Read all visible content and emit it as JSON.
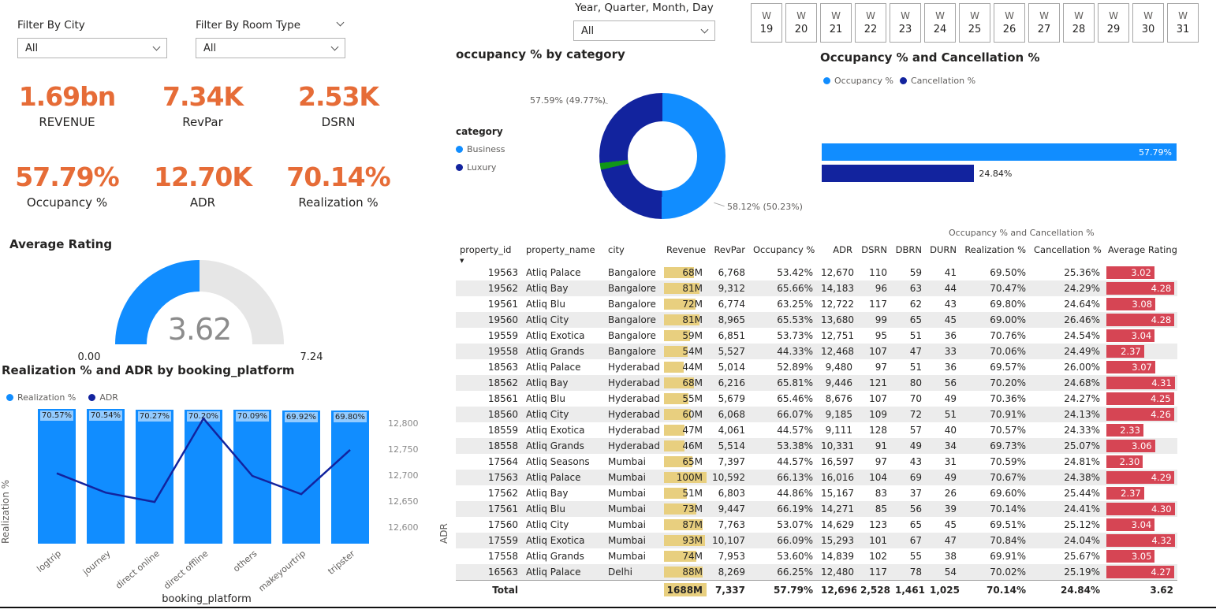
{
  "colors": {
    "accent_blue": "#118DFF",
    "dark_blue": "#12239E",
    "kpi_orange": "#E66C37",
    "revenue_bar": "#E8CF7F",
    "rating_bar": "#D64554",
    "gauge_track": "#E6E6E6",
    "row_alt": "#ECECEC"
  },
  "slicers": {
    "city": {
      "label": "Filter By City",
      "value": "All"
    },
    "room_type": {
      "label": "Filter By Room Type",
      "value": "All"
    },
    "date": {
      "label": "Year, Quarter, Month, Day",
      "value": "All"
    }
  },
  "week_selector": {
    "prefix": "W",
    "numbers": [
      "19",
      "20",
      "21",
      "22",
      "23",
      "24",
      "25",
      "26",
      "27",
      "28",
      "29",
      "30",
      "31"
    ]
  },
  "kpis": [
    {
      "value": "1.69bn",
      "label": "REVENUE"
    },
    {
      "value": "7.34K",
      "label": "RevPar"
    },
    {
      "value": "2.53K",
      "label": "DSRN"
    },
    {
      "value": "57.79%",
      "label": "Occupancy %"
    },
    {
      "value": "12.70K",
      "label": "ADR"
    },
    {
      "value": "70.14%",
      "label": "Realization %"
    }
  ],
  "table_overtitle": "Occupancy % and Cancellation %",
  "chart_data": [
    {
      "id": "occupancy-by-category-donut",
      "type": "pie",
      "title": "occupancy % by category",
      "legend_title": "category",
      "slices": [
        {
          "label": "Business",
          "value_pct": 58.12,
          "share_pct": 50.23,
          "callout": "58.12% (50.23%)",
          "color": "#118DFF"
        },
        {
          "label": "Luxury",
          "value_pct": 57.59,
          "share_pct": 49.77,
          "callout": "57.59% (49.77%)",
          "color": "#12239E"
        }
      ],
      "marker": {
        "color": "#109618",
        "start_pct": 71.5,
        "end_pct": 73.2
      }
    },
    {
      "id": "occupancy-cancellation-bars",
      "type": "bar",
      "orientation": "horizontal",
      "title": "Occupancy % and Cancellation %",
      "series": [
        {
          "name": "Occupancy %",
          "value": 57.79,
          "label": "57.79%",
          "color": "#118DFF"
        },
        {
          "name": "Cancellation %",
          "value": 24.84,
          "label": "24.84%",
          "color": "#12239E"
        }
      ],
      "xlim": [
        0,
        57.79
      ]
    },
    {
      "id": "average-rating-gauge",
      "type": "gauge",
      "title": "Average Rating",
      "value": 3.62,
      "min": 0,
      "max": 7.24,
      "value_label": "3.62",
      "min_label": "0.00",
      "max_label": "7.24"
    },
    {
      "id": "realization-adr-combo",
      "type": "bar",
      "title": "Realization % and ADR by booking_platform",
      "categories": [
        "logtrip",
        "journey",
        "direct online",
        "direct offline",
        "others",
        "makeyourtrip",
        "tripster"
      ],
      "series": [
        {
          "name": "Realization %",
          "kind": "column",
          "axis": "left",
          "color": "#118DFF",
          "values": [
            70.57,
            70.54,
            70.27,
            70.2,
            70.09,
            69.92,
            69.8
          ],
          "labels": [
            "70.57%",
            "70.54%",
            "70.27%",
            "70.20%",
            "70.09%",
            "69.92%",
            "69.80%"
          ]
        },
        {
          "name": "ADR",
          "kind": "line",
          "axis": "right",
          "color": "#12239E",
          "values": [
            12705,
            12668,
            12650,
            12810,
            12700,
            12665,
            12750
          ]
        }
      ],
      "left_axis_label": "Realization %",
      "right_axis_label": "ADR",
      "right_axis_ticks": [
        {
          "value": 12800,
          "label": "12,800"
        },
        {
          "value": 12750,
          "label": "12,750"
        },
        {
          "value": 12700,
          "label": "12,700"
        },
        {
          "value": 12650,
          "label": "12,650"
        },
        {
          "value": 12600,
          "label": "12,600"
        }
      ],
      "right_axis_range": [
        12600,
        12800
      ],
      "xlabel": "booking_platform"
    }
  ],
  "table": {
    "columns": [
      "property_id",
      "property_name",
      "city",
      "Revenue",
      "RevPar",
      "Occupancy %",
      "ADR",
      "DSRN",
      "DBRN",
      "DURN",
      "Realization %",
      "Cancellation %",
      "Average Rating"
    ],
    "rows": [
      [
        "19563",
        "Atliq Palace",
        "Bangalore",
        "68M",
        "6,768",
        "53.42%",
        "12,670",
        "110",
        "59",
        "41",
        "69.50%",
        "25.36%",
        "3.02"
      ],
      [
        "19562",
        "Atliq Bay",
        "Bangalore",
        "81M",
        "9,312",
        "65.66%",
        "14,183",
        "96",
        "63",
        "44",
        "70.47%",
        "24.29%",
        "4.28"
      ],
      [
        "19561",
        "Atliq Blu",
        "Bangalore",
        "72M",
        "6,774",
        "63.25%",
        "12,722",
        "117",
        "62",
        "43",
        "69.80%",
        "24.64%",
        "3.08"
      ],
      [
        "19560",
        "Atliq City",
        "Bangalore",
        "81M",
        "8,965",
        "65.53%",
        "13,680",
        "99",
        "65",
        "45",
        "69.00%",
        "26.46%",
        "4.28"
      ],
      [
        "19559",
        "Atliq Exotica",
        "Bangalore",
        "59M",
        "6,851",
        "53.73%",
        "12,751",
        "95",
        "51",
        "36",
        "70.76%",
        "24.54%",
        "3.04"
      ],
      [
        "19558",
        "Atliq Grands",
        "Bangalore",
        "54M",
        "5,527",
        "44.33%",
        "12,468",
        "107",
        "47",
        "33",
        "70.06%",
        "24.49%",
        "2.37"
      ],
      [
        "18563",
        "Atliq Palace",
        "Hyderabad",
        "44M",
        "5,014",
        "52.89%",
        "9,480",
        "97",
        "51",
        "36",
        "69.57%",
        "26.00%",
        "3.07"
      ],
      [
        "18562",
        "Atliq Bay",
        "Hyderabad",
        "68M",
        "6,216",
        "65.81%",
        "9,446",
        "121",
        "80",
        "56",
        "70.20%",
        "24.68%",
        "4.31"
      ],
      [
        "18561",
        "Atliq Blu",
        "Hyderabad",
        "55M",
        "5,679",
        "65.46%",
        "8,676",
        "107",
        "70",
        "49",
        "70.36%",
        "24.27%",
        "4.25"
      ],
      [
        "18560",
        "Atliq City",
        "Hyderabad",
        "60M",
        "6,068",
        "66.07%",
        "9,185",
        "109",
        "72",
        "51",
        "70.91%",
        "24.13%",
        "4.26"
      ],
      [
        "18559",
        "Atliq Exotica",
        "Hyderabad",
        "47M",
        "4,061",
        "44.57%",
        "9,111",
        "128",
        "57",
        "40",
        "70.57%",
        "24.33%",
        "2.33"
      ],
      [
        "18558",
        "Atliq Grands",
        "Hyderabad",
        "46M",
        "5,514",
        "53.38%",
        "10,331",
        "91",
        "49",
        "34",
        "69.73%",
        "25.07%",
        "3.06"
      ],
      [
        "17564",
        "Atliq Seasons",
        "Mumbai",
        "65M",
        "7,397",
        "44.57%",
        "16,597",
        "97",
        "43",
        "31",
        "70.59%",
        "24.81%",
        "2.30"
      ],
      [
        "17563",
        "Atliq Palace",
        "Mumbai",
        "100M",
        "10,592",
        "66.13%",
        "16,016",
        "104",
        "69",
        "49",
        "70.67%",
        "24.38%",
        "4.29"
      ],
      [
        "17562",
        "Atliq Bay",
        "Mumbai",
        "51M",
        "6,803",
        "44.86%",
        "15,167",
        "83",
        "37",
        "26",
        "69.60%",
        "25.44%",
        "2.37"
      ],
      [
        "17561",
        "Atliq Blu",
        "Mumbai",
        "73M",
        "9,447",
        "66.19%",
        "14,271",
        "85",
        "56",
        "39",
        "70.14%",
        "24.41%",
        "4.30"
      ],
      [
        "17560",
        "Atliq City",
        "Mumbai",
        "87M",
        "7,763",
        "53.07%",
        "14,629",
        "123",
        "65",
        "45",
        "69.51%",
        "25.12%",
        "3.04"
      ],
      [
        "17559",
        "Atliq Exotica",
        "Mumbai",
        "93M",
        "10,107",
        "66.09%",
        "15,293",
        "101",
        "67",
        "47",
        "70.84%",
        "24.04%",
        "4.32"
      ],
      [
        "17558",
        "Atliq Grands",
        "Mumbai",
        "74M",
        "7,953",
        "53.60%",
        "14,839",
        "102",
        "55",
        "38",
        "69.91%",
        "25.67%",
        "3.05"
      ],
      [
        "16563",
        "Atliq Palace",
        "Delhi",
        "88M",
        "8,269",
        "66.25%",
        "12,480",
        "117",
        "78",
        "54",
        "70.02%",
        "25.19%",
        "4.27"
      ]
    ],
    "total": [
      "Total",
      "",
      "",
      "1688M",
      "7,337",
      "57.79%",
      "12,696",
      "2,528",
      "1,461",
      "1,025",
      "70.14%",
      "24.84%",
      "3.62"
    ]
  }
}
